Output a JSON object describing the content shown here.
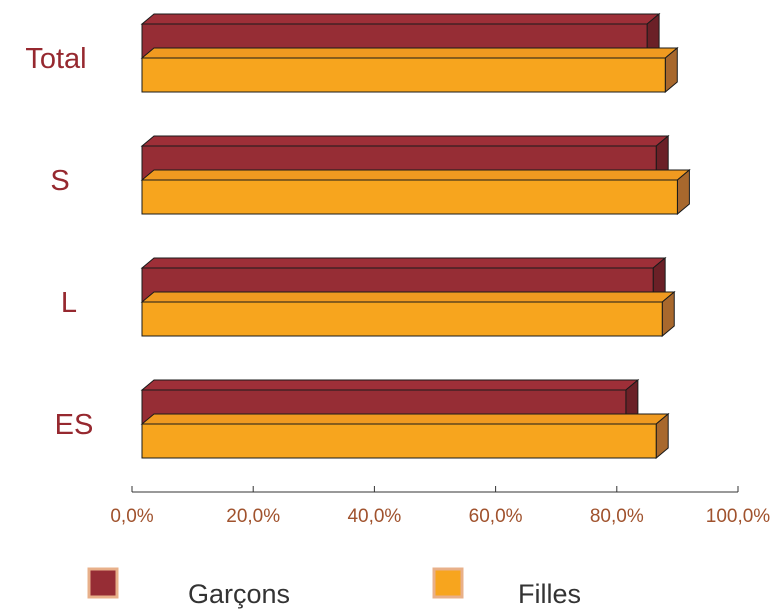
{
  "colors": {
    "text_red": "#96282f",
    "tick_text": "#a0522d",
    "axis": "#333333",
    "outline": "#1a1a1a"
  },
  "chart_data": {
    "type": "bar",
    "orientation": "horizontal",
    "style": "3d",
    "categories": [
      "Total",
      "S",
      "L",
      "ES"
    ],
    "series": [
      {
        "name": "Garçons",
        "values": [
          85.0,
          86.5,
          86.0,
          81.5
        ],
        "color": "#962d35",
        "top_color": "#9e2f38",
        "side_color": "#6b2027"
      },
      {
        "name": "Filles",
        "values": [
          88.0,
          90.0,
          87.5,
          86.5
        ],
        "color": "#f7a51e",
        "top_color": "#f09a20",
        "side_color": "#a8682d"
      }
    ],
    "xlim": [
      0,
      100
    ],
    "xticks": [
      "0,0%",
      "20,0%",
      "40,0%",
      "60,0%",
      "80,0%",
      "100,0%"
    ],
    "grid": false,
    "legend_position": "bottom"
  }
}
